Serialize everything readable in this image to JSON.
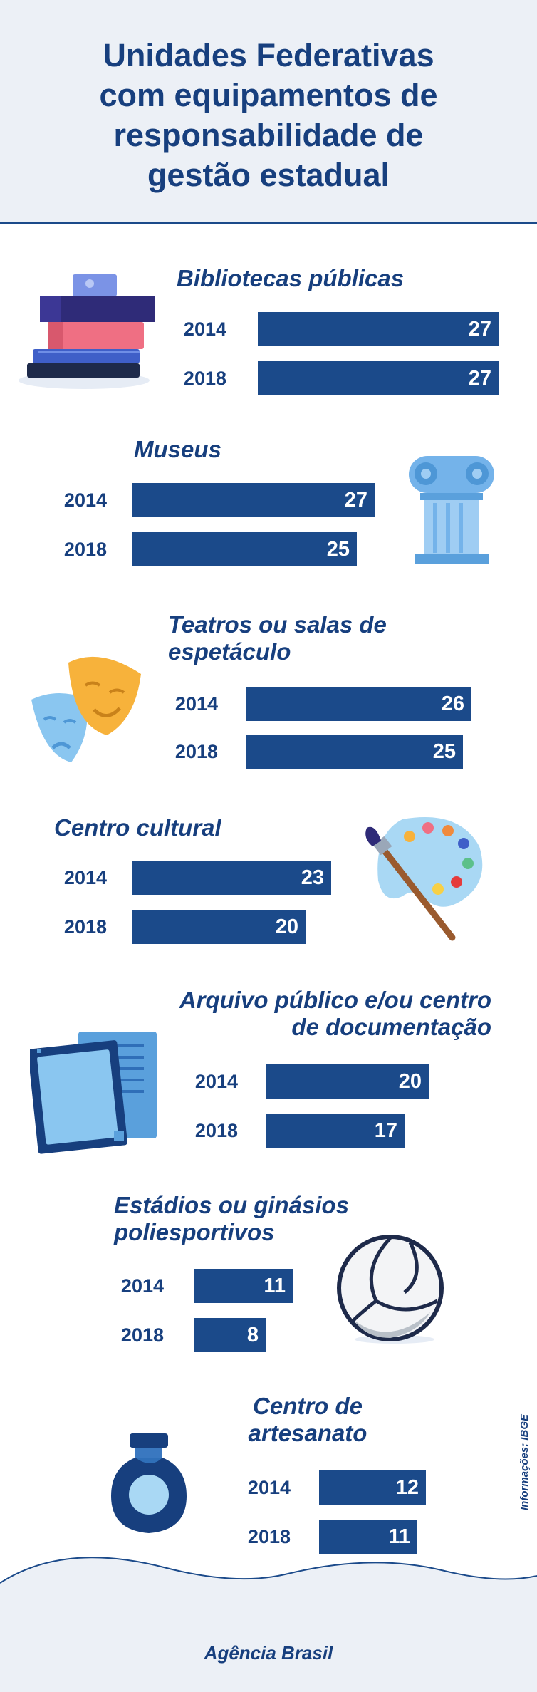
{
  "title_lines": [
    "Unidades Federativas",
    "com equipamentos de",
    "responsabilidade de",
    "gestão estadual"
  ],
  "brand": "Agência Brasil",
  "source": "Informações: IBGE",
  "colors": {
    "accent": "#1b4a8a",
    "background_header": "#ecf0f6",
    "text": "#173f7e"
  },
  "chart_data": {
    "type": "bar",
    "orientation": "horizontal",
    "title": "Unidades Federativas com equipamentos de responsabilidade de gestão estadual",
    "series_years": [
      "2014",
      "2018"
    ],
    "groups": [
      {
        "label_lines": [
          "Bibliotecas públicas"
        ],
        "icon": "books-icon",
        "years": [
          "2014",
          "2018"
        ],
        "values": [
          27,
          27
        ]
      },
      {
        "label_lines": [
          "Museus"
        ],
        "icon": "column-icon",
        "years": [
          "2014",
          "2018"
        ],
        "values": [
          27,
          25
        ]
      },
      {
        "label_lines": [
          "Teatros ou salas de",
          "espetáculo"
        ],
        "icon": "theater-masks-icon",
        "years": [
          "2014",
          "2018"
        ],
        "values": [
          26,
          25
        ]
      },
      {
        "label_lines": [
          "Centro cultural"
        ],
        "icon": "paint-palette-icon",
        "years": [
          "2014",
          "2018"
        ],
        "values": [
          23,
          20
        ]
      },
      {
        "label_lines": [
          "Arquivo público e/ou centro",
          "de documentação"
        ],
        "icon": "documents-icon",
        "years": [
          "2014",
          "2018"
        ],
        "values": [
          20,
          17
        ]
      },
      {
        "label_lines": [
          "Estádios ou ginásios",
          "poliesportivos"
        ],
        "icon": "volleyball-icon",
        "years": [
          "2014",
          "2018"
        ],
        "values": [
          11,
          8
        ]
      },
      {
        "label_lines": [
          "Centro de",
          "artesanato"
        ],
        "icon": "vase-icon",
        "years": [
          "2014",
          "2018"
        ],
        "values": [
          12,
          11
        ]
      }
    ],
    "xlim": [
      0,
      27
    ]
  }
}
